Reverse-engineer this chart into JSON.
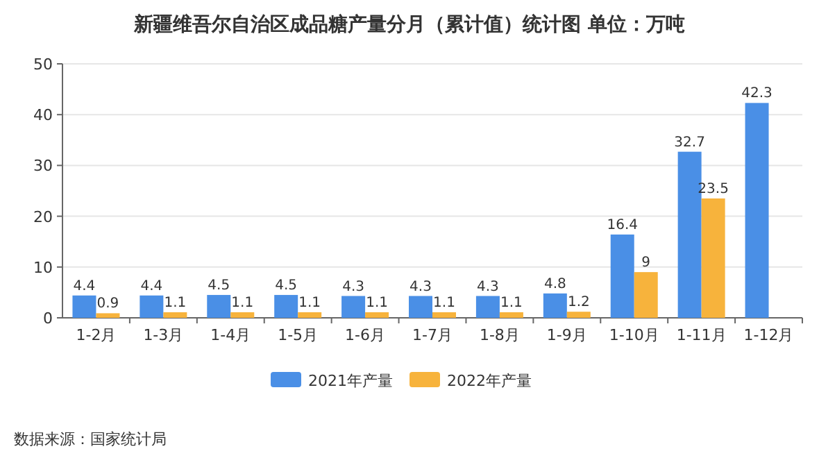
{
  "chart_data": {
    "type": "bar",
    "title": "新疆维吾尔自治区成品糖产量分月（累计值）统计图 单位：万吨",
    "categories": [
      "1-2月",
      "1-3月",
      "1-4月",
      "1-5月",
      "1-6月",
      "1-7月",
      "1-8月",
      "1-9月",
      "1-10月",
      "1-11月",
      "1-12月"
    ],
    "series": [
      {
        "name": "2021年产量",
        "color": "#4a8fe6",
        "values": [
          4.4,
          4.4,
          4.5,
          4.5,
          4.3,
          4.3,
          4.3,
          4.8,
          16.4,
          32.7,
          42.3
        ]
      },
      {
        "name": "2022年产量",
        "color": "#f7b33c",
        "values": [
          0.9,
          1.1,
          1.1,
          1.1,
          1.1,
          1.1,
          1.1,
          1.2,
          9,
          23.5,
          null
        ]
      }
    ],
    "ylim": [
      0,
      50
    ],
    "yticks": [
      0,
      10,
      20,
      30,
      40,
      50
    ],
    "grid": "y",
    "legend": "bottom",
    "data_labels": true,
    "annotations": [
      "数据来源：国家统计局"
    ]
  }
}
